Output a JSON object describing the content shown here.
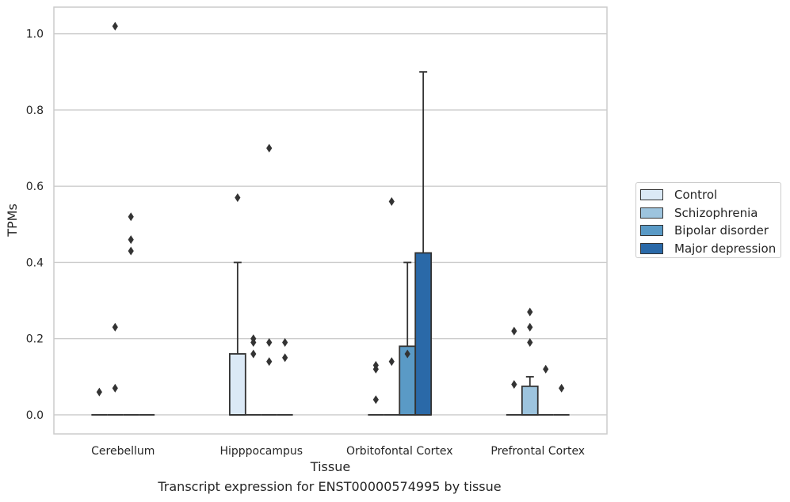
{
  "chart_data": {
    "type": "box",
    "title": "",
    "caption": "Transcript expression for ENST00000574995 by tissue",
    "xlabel": "Tissue",
    "ylabel": "TPMs",
    "ylim": [
      -0.05,
      1.07
    ],
    "yticks": [
      0.0,
      0.2,
      0.4,
      0.6,
      0.8,
      1.0
    ],
    "ytick_labels": [
      "0.0",
      "0.2",
      "0.4",
      "0.6",
      "0.8",
      "1.0"
    ],
    "grid": true,
    "legend_position": "right",
    "categories": [
      "Cerebellum",
      "Hipppocampus",
      "Orbitofontal Cortex",
      "Prefrontal Cortex"
    ],
    "series": [
      {
        "name": "Control",
        "color": "#dbe9f6",
        "boxes": [
          {
            "q1": 0,
            "median": 0,
            "q3": 0,
            "whisker_low": 0,
            "whisker_high": 0,
            "outliers": [
              0.06
            ]
          },
          {
            "q1": 0,
            "median": 0,
            "q3": 0.16,
            "whisker_low": 0,
            "whisker_high": 0.4,
            "outliers": [
              0.57
            ]
          },
          {
            "q1": 0,
            "median": 0,
            "q3": 0,
            "whisker_low": 0,
            "whisker_high": 0,
            "outliers": [
              0.04,
              0.12,
              0.13
            ]
          },
          {
            "q1": 0,
            "median": 0,
            "q3": 0,
            "whisker_low": 0,
            "whisker_high": 0,
            "outliers": [
              0.08,
              0.22
            ]
          }
        ]
      },
      {
        "name": "Schizophrenia",
        "color": "#9dc4de",
        "boxes": [
          {
            "q1": 0,
            "median": 0,
            "q3": 0,
            "whisker_low": 0,
            "whisker_high": 0,
            "outliers": [
              0.07,
              0.23,
              1.02
            ]
          },
          {
            "q1": 0,
            "median": 0,
            "q3": 0,
            "whisker_low": 0,
            "whisker_high": 0,
            "outliers": [
              0.16,
              0.19,
              0.2
            ]
          },
          {
            "q1": 0,
            "median": 0,
            "q3": 0,
            "whisker_low": 0,
            "whisker_high": 0,
            "outliers": [
              0.14,
              0.56
            ]
          },
          {
            "q1": 0,
            "median": 0,
            "q3": 0.075,
            "whisker_low": 0,
            "whisker_high": 0.1,
            "outliers": [
              0.19,
              0.23,
              0.27
            ]
          }
        ]
      },
      {
        "name": "Bipolar disorder",
        "color": "#5a9ac6",
        "boxes": [
          {
            "q1": 0,
            "median": 0,
            "q3": 0,
            "whisker_low": 0,
            "whisker_high": 0,
            "outliers": [
              0.43,
              0.46,
              0.52
            ]
          },
          {
            "q1": 0,
            "median": 0,
            "q3": 0,
            "whisker_low": 0,
            "whisker_high": 0,
            "outliers": [
              0.14,
              0.19,
              0.7
            ]
          },
          {
            "q1": 0,
            "median": 0,
            "q3": 0.18,
            "whisker_low": 0,
            "whisker_high": 0.4,
            "outliers": [
              0.16
            ]
          },
          {
            "q1": 0,
            "median": 0,
            "q3": 0,
            "whisker_low": 0,
            "whisker_high": 0,
            "outliers": [
              0.12
            ]
          }
        ]
      },
      {
        "name": "Major depression",
        "color": "#2a69a8",
        "boxes": [
          {
            "q1": 0,
            "median": 0,
            "q3": 0,
            "whisker_low": 0,
            "whisker_high": 0,
            "outliers": []
          },
          {
            "q1": 0,
            "median": 0,
            "q3": 0,
            "whisker_low": 0,
            "whisker_high": 0,
            "outliers": [
              0.15,
              0.19
            ]
          },
          {
            "q1": 0,
            "median": 0,
            "q3": 0.425,
            "whisker_low": 0,
            "whisker_high": 0.9,
            "outliers": []
          },
          {
            "q1": 0,
            "median": 0,
            "q3": 0,
            "whisker_low": 0,
            "whisker_high": 0,
            "outliers": [
              0.07
            ]
          }
        ]
      }
    ]
  }
}
